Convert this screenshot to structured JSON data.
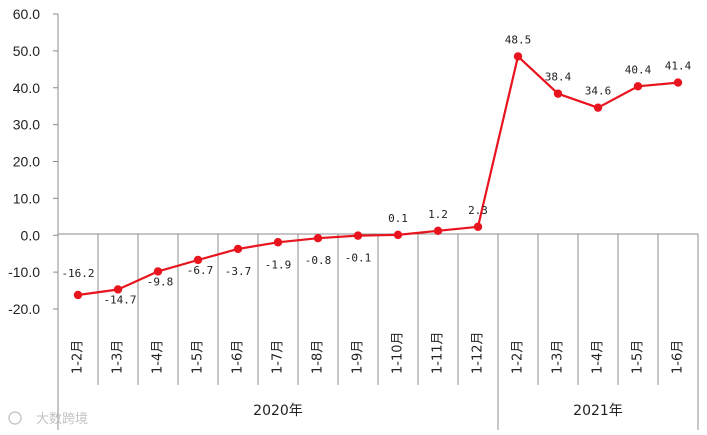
{
  "chart_data": {
    "type": "line",
    "title": "",
    "xlabel": "",
    "ylabel": "",
    "ylim": [
      -20,
      60
    ],
    "y_ticks": [
      "-20.0",
      "-10.0",
      "0.0",
      "10.0",
      "20.0",
      "30.0",
      "40.0",
      "50.0",
      "60.0"
    ],
    "grid": false,
    "groups": [
      {
        "label": "2020年",
        "start": 0,
        "end": 10
      },
      {
        "label": "2021年",
        "start": 11,
        "end": 15
      }
    ],
    "categories": [
      "1-2月",
      "1-3月",
      "1-4月",
      "1-5月",
      "1-6月",
      "1-7月",
      "1-8月",
      "1-9月",
      "1-10月",
      "1-11月",
      "1-12月",
      "1-2月",
      "1-3月",
      "1-4月",
      "1-5月",
      "1-6月"
    ],
    "series": [
      {
        "color": "#e8141e",
        "values": [
          -16.2,
          -14.7,
          -9.8,
          -6.7,
          -3.7,
          -1.9,
          -0.8,
          -0.1,
          0.1,
          1.2,
          2.3,
          48.5,
          38.4,
          34.6,
          40.4,
          41.4
        ],
        "labels": [
          "-16.2",
          "-14.7",
          "-9.8",
          "-6.7",
          "-3.7",
          "-1.9",
          "-0.8",
          "-0.1",
          "0.1",
          "1.2",
          "2.3",
          "48.5",
          "38.4",
          "34.6",
          "40.4",
          "41.4"
        ]
      }
    ]
  },
  "watermark": {
    "icon": "watermark-logo-icon",
    "text": "大数跨境"
  }
}
